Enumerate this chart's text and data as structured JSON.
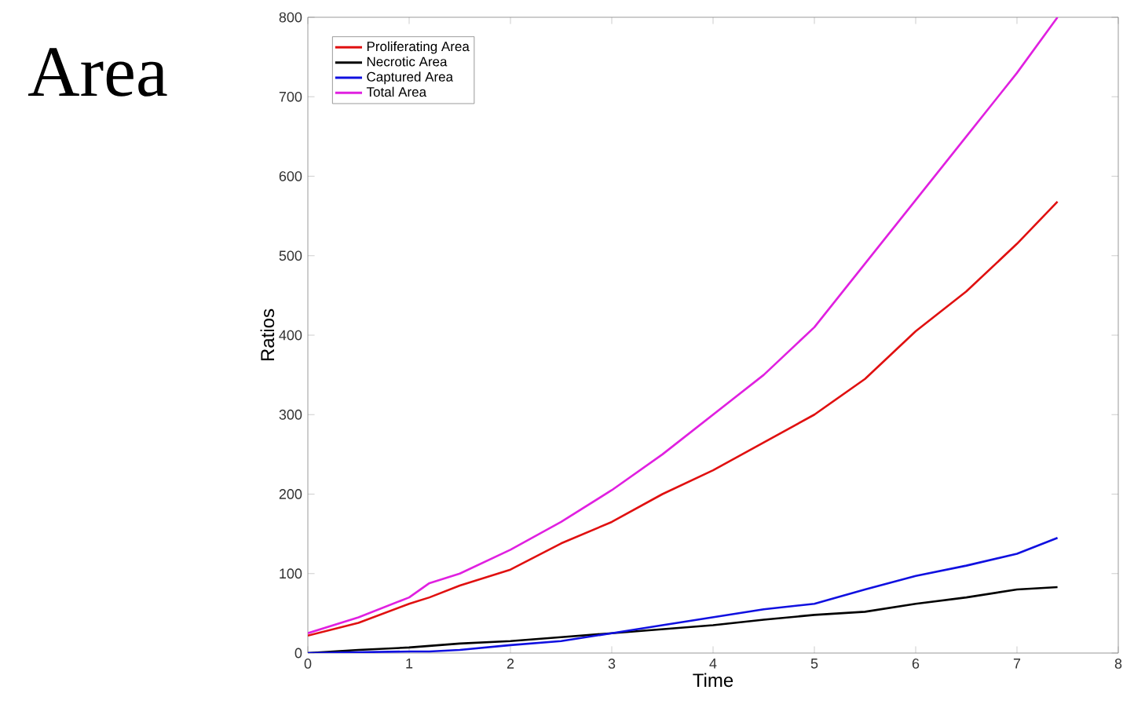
{
  "chart_data": {
    "type": "line",
    "title": "Area",
    "xlabel": "Time",
    "ylabel": "Ratios",
    "xlim": [
      0,
      8
    ],
    "ylim": [
      0,
      800
    ],
    "xticks": [
      0,
      1,
      2,
      3,
      4,
      5,
      6,
      7,
      8
    ],
    "yticks": [
      0,
      100,
      200,
      300,
      400,
      500,
      600,
      700,
      800
    ],
    "legend": "top left",
    "grid": false,
    "marker": "none",
    "line_style": "solid",
    "x": [
      0,
      0.5,
      1,
      1.2,
      1.5,
      2,
      2.5,
      3,
      3.5,
      4,
      4.5,
      5,
      5.5,
      6,
      6.5,
      7,
      7.4
    ],
    "series": [
      {
        "name": "Proliferating Area",
        "color": "#e01010",
        "values": [
          22,
          38,
          62,
          70,
          85,
          105,
          138,
          165,
          200,
          230,
          265,
          300,
          345,
          405,
          455,
          515,
          568
        ]
      },
      {
        "name": "Necrotic Area",
        "color": "#000000",
        "values": [
          0,
          4,
          7,
          9,
          12,
          15,
          20,
          25,
          30,
          35,
          42,
          48,
          52,
          62,
          70,
          80,
          83
        ]
      },
      {
        "name": "Captured Area",
        "color": "#1010e0",
        "values": [
          0,
          1,
          2,
          2,
          4,
          10,
          15,
          25,
          35,
          45,
          55,
          62,
          80,
          97,
          110,
          125,
          145
        ]
      },
      {
        "name": "Total Area",
        "color": "#e020e0",
        "values": [
          25,
          45,
          70,
          88,
          100,
          130,
          165,
          205,
          250,
          300,
          350,
          410,
          490,
          570,
          650,
          730,
          800
        ]
      }
    ]
  }
}
